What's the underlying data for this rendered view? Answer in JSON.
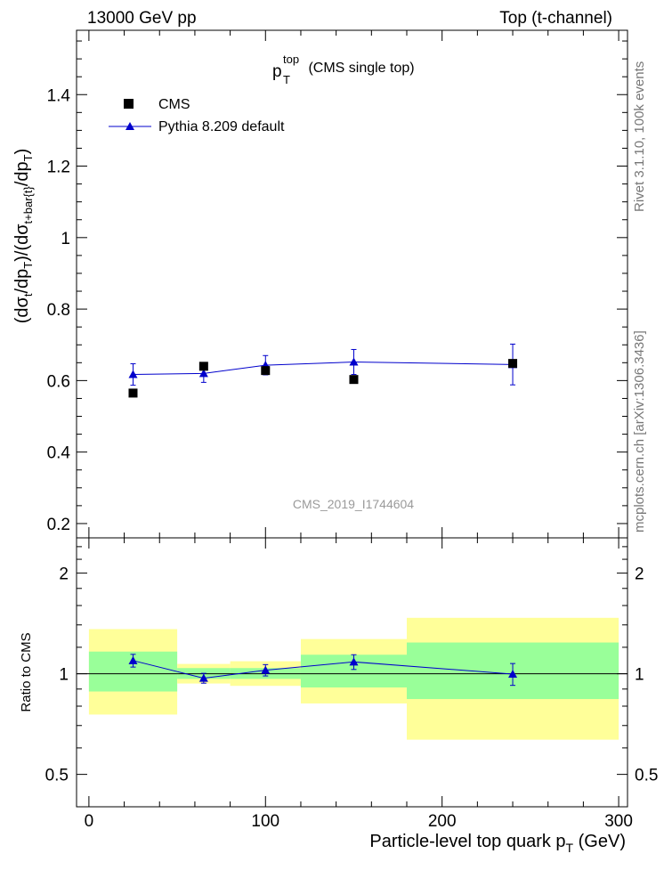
{
  "header": {
    "left": "13000 GeV pp",
    "right": "Top (t-channel)"
  },
  "side_labels": {
    "rivet": "Rivet 3.1.10,  100k events",
    "mcplots": "mcplots.cern.ch [arXiv:1306.3436]"
  },
  "watermark": "CMS_2019_I1744604",
  "chart_data": [
    {
      "type": "scatter",
      "title_main": "p",
      "title_sup": "top",
      "title_sub": "T",
      "title_rest": " (CMS single top)",
      "ylabel": "(dσ_t/dp_T)/(dσ_{t+bar{t}}/dp_T)",
      "xlim": [
        -7,
        305
      ],
      "ylim": [
        0.16,
        1.58
      ],
      "yticks": [
        {
          "value": 0.2,
          "label": "0.2"
        },
        {
          "value": 0.4,
          "label": "0.4"
        },
        {
          "value": 0.6,
          "label": "0.6"
        },
        {
          "value": 0.8,
          "label": "0.8"
        },
        {
          "value": 1.0,
          "label": "1"
        },
        {
          "value": 1.2,
          "label": "1.2"
        },
        {
          "value": 1.4,
          "label": "1.4"
        }
      ],
      "legend": [
        {
          "label": "CMS",
          "marker": "square",
          "color": "#000000"
        },
        {
          "label": "Pythia 8.209 default",
          "marker": "triangle",
          "color": "#0000cc"
        }
      ],
      "series": [
        {
          "name": "CMS",
          "color": "#000000",
          "x": [
            25,
            65,
            100,
            150,
            240
          ],
          "y": [
            0.565,
            0.64,
            0.628,
            0.603,
            0.648
          ]
        },
        {
          "name": "Pythia 8.209 default",
          "color": "#0000cc",
          "x": [
            25,
            65,
            100,
            150,
            240
          ],
          "y": [
            0.617,
            0.62,
            0.643,
            0.652,
            0.645
          ],
          "yerr": [
            0.03,
            0.025,
            0.027,
            0.035,
            0.057
          ]
        }
      ]
    },
    {
      "type": "scatter",
      "ylabel": "Ratio to CMS",
      "xlabel_main": "Particle-level top quark p",
      "xlabel_sub": "T",
      "xlabel_rest": " (GeV)",
      "log_y": true,
      "xlim": [
        -7,
        305
      ],
      "ylim": [
        0.4,
        2.55
      ],
      "xticks": [
        {
          "value": 0,
          "label": "0"
        },
        {
          "value": 100,
          "label": "100"
        },
        {
          "value": 200,
          "label": "200"
        },
        {
          "value": 300,
          "label": "300"
        }
      ],
      "yticks": [
        {
          "value": 0.5,
          "label": "0.5"
        },
        {
          "value": 1,
          "label": "1"
        },
        {
          "value": 2,
          "label": "2"
        }
      ],
      "bands": [
        {
          "x0": 0,
          "x1": 50,
          "yellow": [
            0.755,
            1.36
          ],
          "green": [
            0.885,
            1.165
          ]
        },
        {
          "x0": 50,
          "x1": 80,
          "yellow": [
            0.935,
            1.07
          ],
          "green": [
            0.965,
            1.04
          ]
        },
        {
          "x0": 80,
          "x1": 120,
          "yellow": [
            0.92,
            1.09
          ],
          "green": [
            0.965,
            1.04
          ]
        },
        {
          "x0": 120,
          "x1": 180,
          "yellow": [
            0.815,
            1.27
          ],
          "green": [
            0.91,
            1.14
          ]
        },
        {
          "x0": 180,
          "x1": 300,
          "yellow": [
            0.635,
            1.47
          ],
          "green": [
            0.84,
            1.24
          ]
        }
      ],
      "series": [
        {
          "name": "Pythia 8.209 default",
          "color": "#0000cc",
          "x": [
            25,
            65,
            100,
            150,
            240
          ],
          "y": [
            1.095,
            0.97,
            1.025,
            1.085,
            0.998
          ],
          "yerr": [
            0.048,
            0.033,
            0.04,
            0.055,
            0.075
          ]
        }
      ]
    }
  ]
}
